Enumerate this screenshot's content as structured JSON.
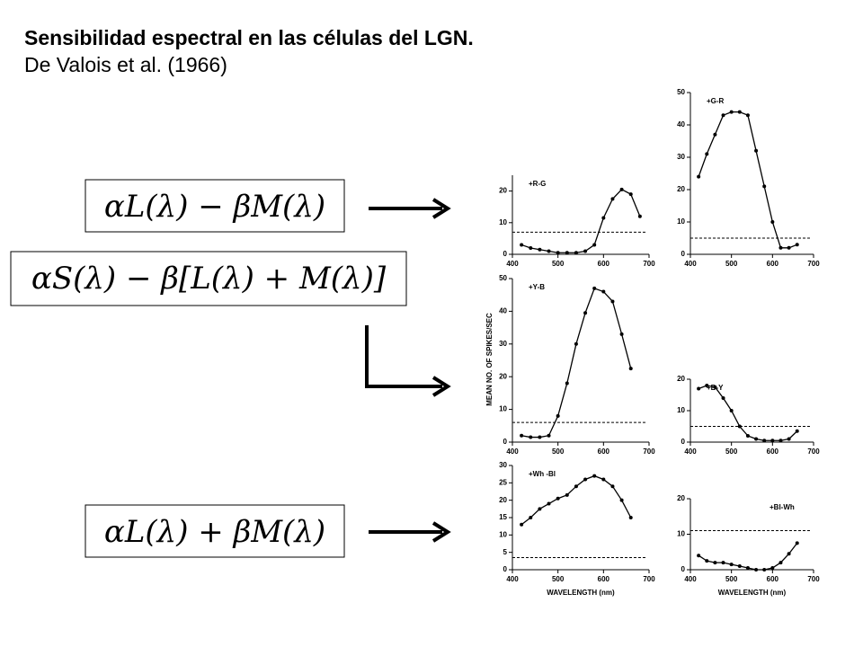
{
  "title": "Sensibilidad espectral en las células del LGN.",
  "subtitle": "De Valois et al. (1966)",
  "formulas": [
    "αL(λ) − βM(λ)",
    "αS(λ) − β[L(λ) + M(λ)]",
    "αL(λ) + βM(λ)"
  ],
  "y_axis_label": "MEAN  NO. OF  SPIKES/SEC",
  "chart_data": [
    {
      "type": "line",
      "annotation": "+R-G",
      "color": "#000000",
      "x": [
        420,
        440,
        460,
        480,
        500,
        520,
        540,
        560,
        580,
        600,
        620,
        640,
        660,
        680
      ],
      "values": [
        3,
        2,
        1.5,
        1,
        0.5,
        0.5,
        0.5,
        1,
        3,
        11.5,
        17.5,
        20.5,
        19,
        12
      ],
      "baseline": 7,
      "xlim": [
        400,
        700
      ],
      "xticks": [
        400,
        500,
        600,
        700
      ],
      "ylim": [
        0,
        25
      ],
      "yticks": [
        0,
        10,
        20
      ]
    },
    {
      "type": "line",
      "annotation": "+G-R",
      "color": "#000000",
      "x": [
        420,
        440,
        460,
        480,
        500,
        520,
        540,
        560,
        580,
        600,
        620,
        640,
        660
      ],
      "values": [
        24,
        31,
        37,
        43,
        44,
        44,
        43,
        32,
        21,
        10,
        2,
        2,
        3
      ],
      "baseline": 5,
      "xlim": [
        400,
        700
      ],
      "xticks": [
        400,
        500,
        600,
        700
      ],
      "ylim": [
        0,
        50
      ],
      "yticks": [
        0,
        10,
        20,
        30,
        40,
        50
      ]
    },
    {
      "type": "line",
      "annotation": "+Y-B",
      "color": "#000000",
      "x": [
        420,
        440,
        460,
        480,
        500,
        520,
        540,
        560,
        580,
        600,
        620,
        640,
        660
      ],
      "values": [
        2,
        1.5,
        1.5,
        2,
        8,
        18,
        30,
        39.5,
        47,
        46,
        43,
        33,
        22.5
      ],
      "baseline": 6,
      "xlim": [
        400,
        700
      ],
      "xticks": [
        400,
        500,
        600,
        700
      ],
      "ylim": [
        0,
        50
      ],
      "yticks": [
        0,
        10,
        20,
        30,
        40,
        50
      ]
    },
    {
      "type": "line",
      "annotation": "+B-Y",
      "color": "#000000",
      "x": [
        420,
        440,
        460,
        480,
        500,
        520,
        540,
        560,
        580,
        600,
        620,
        640,
        660
      ],
      "values": [
        17,
        18,
        17.5,
        14,
        10,
        5,
        2,
        1,
        0.5,
        0.5,
        0.5,
        1,
        3.5
      ],
      "baseline": 5,
      "xlim": [
        400,
        700
      ],
      "xticks": [
        400,
        500,
        600,
        700
      ],
      "ylim": [
        0,
        20
      ],
      "yticks": [
        0,
        10,
        20
      ]
    },
    {
      "type": "line",
      "annotation": "+Wh -Bl",
      "color": "#000000",
      "x": [
        420,
        440,
        460,
        480,
        500,
        520,
        540,
        560,
        580,
        600,
        620,
        640,
        660
      ],
      "values": [
        13,
        15,
        17.5,
        19,
        20.5,
        21.5,
        24,
        26,
        27,
        26,
        24,
        20,
        15
      ],
      "baseline": 3.5,
      "xlim": [
        400,
        700
      ],
      "xticks": [
        400,
        500,
        600,
        700
      ],
      "ylim": [
        0,
        30
      ],
      "yticks": [
        0,
        5,
        10,
        15,
        20,
        25,
        30
      ],
      "xlabel": "WAVELENGTH  (nm)"
    },
    {
      "type": "line",
      "annotation": "+Bl-Wh",
      "color": "#000000",
      "x": [
        420,
        440,
        460,
        480,
        500,
        520,
        540,
        560,
        580,
        600,
        620,
        640,
        660
      ],
      "values": [
        4,
        2.5,
        2,
        2,
        1.5,
        1,
        0.5,
        0,
        0,
        0.5,
        2,
        4.5,
        7.5
      ],
      "baseline": 11,
      "xlim": [
        400,
        700
      ],
      "xticks": [
        400,
        500,
        600,
        700
      ],
      "ylim": [
        0,
        20
      ],
      "yticks": [
        0,
        10,
        20
      ],
      "xlabel": "WAVELENGTH  (nm)"
    }
  ]
}
